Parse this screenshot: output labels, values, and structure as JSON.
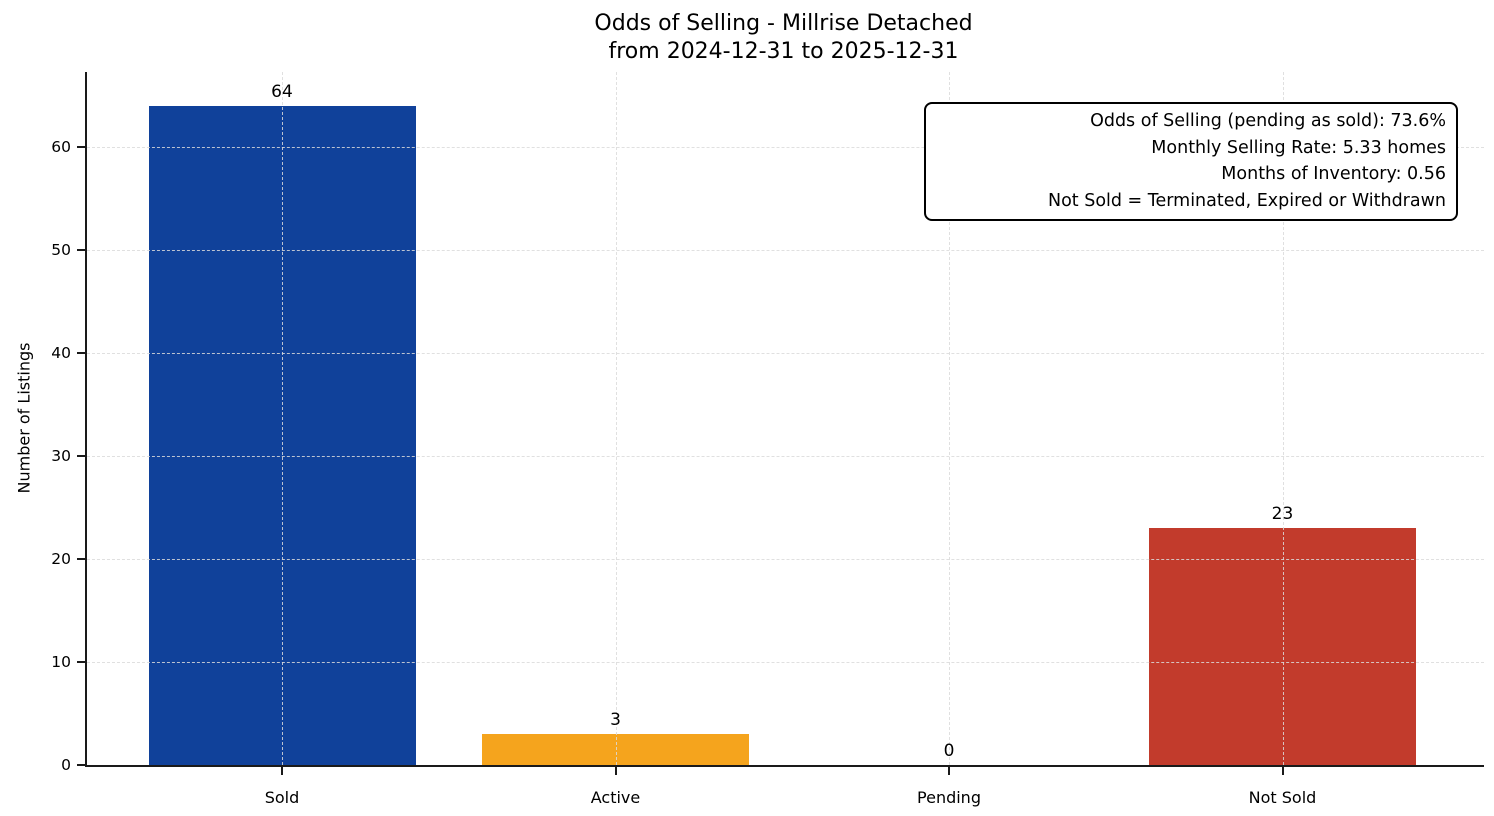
{
  "title": {
    "line1": "Odds of Selling - Millrise Detached",
    "line2": "from 2024-12-31 to 2025-12-31"
  },
  "chart_data": {
    "type": "bar",
    "title": "Odds of Selling - Millrise Detached\nfrom 2024-12-31 to 2025-12-31",
    "xlabel": "",
    "ylabel": "Number of Listings",
    "categories": [
      "Sold",
      "Active",
      "Pending",
      "Not Sold"
    ],
    "values": [
      64,
      3,
      0,
      23
    ],
    "value_labels": [
      "64",
      "3",
      "0",
      "23"
    ],
    "bar_colors": [
      "#10419a",
      "#f5a41d",
      null,
      "#c23b2c"
    ],
    "yticks": [
      0,
      10,
      20,
      30,
      40,
      50,
      60
    ],
    "ylim": [
      0,
      67.3
    ],
    "grid": true,
    "grid_style": "dashed",
    "legend_position": "none",
    "annotation_lines": [
      "Odds of Selling (pending as sold): 73.6%",
      "Monthly Selling Rate: 5.33 homes",
      "Months of Inventory: 0.56",
      "Not Sold = Terminated, Expired or Withdrawn"
    ]
  },
  "colors": {
    "background": "#ffffff",
    "spine": "#1a1a1a",
    "grid": "#dbdbdb",
    "text": "#000000",
    "annotation_border": "#000000"
  }
}
